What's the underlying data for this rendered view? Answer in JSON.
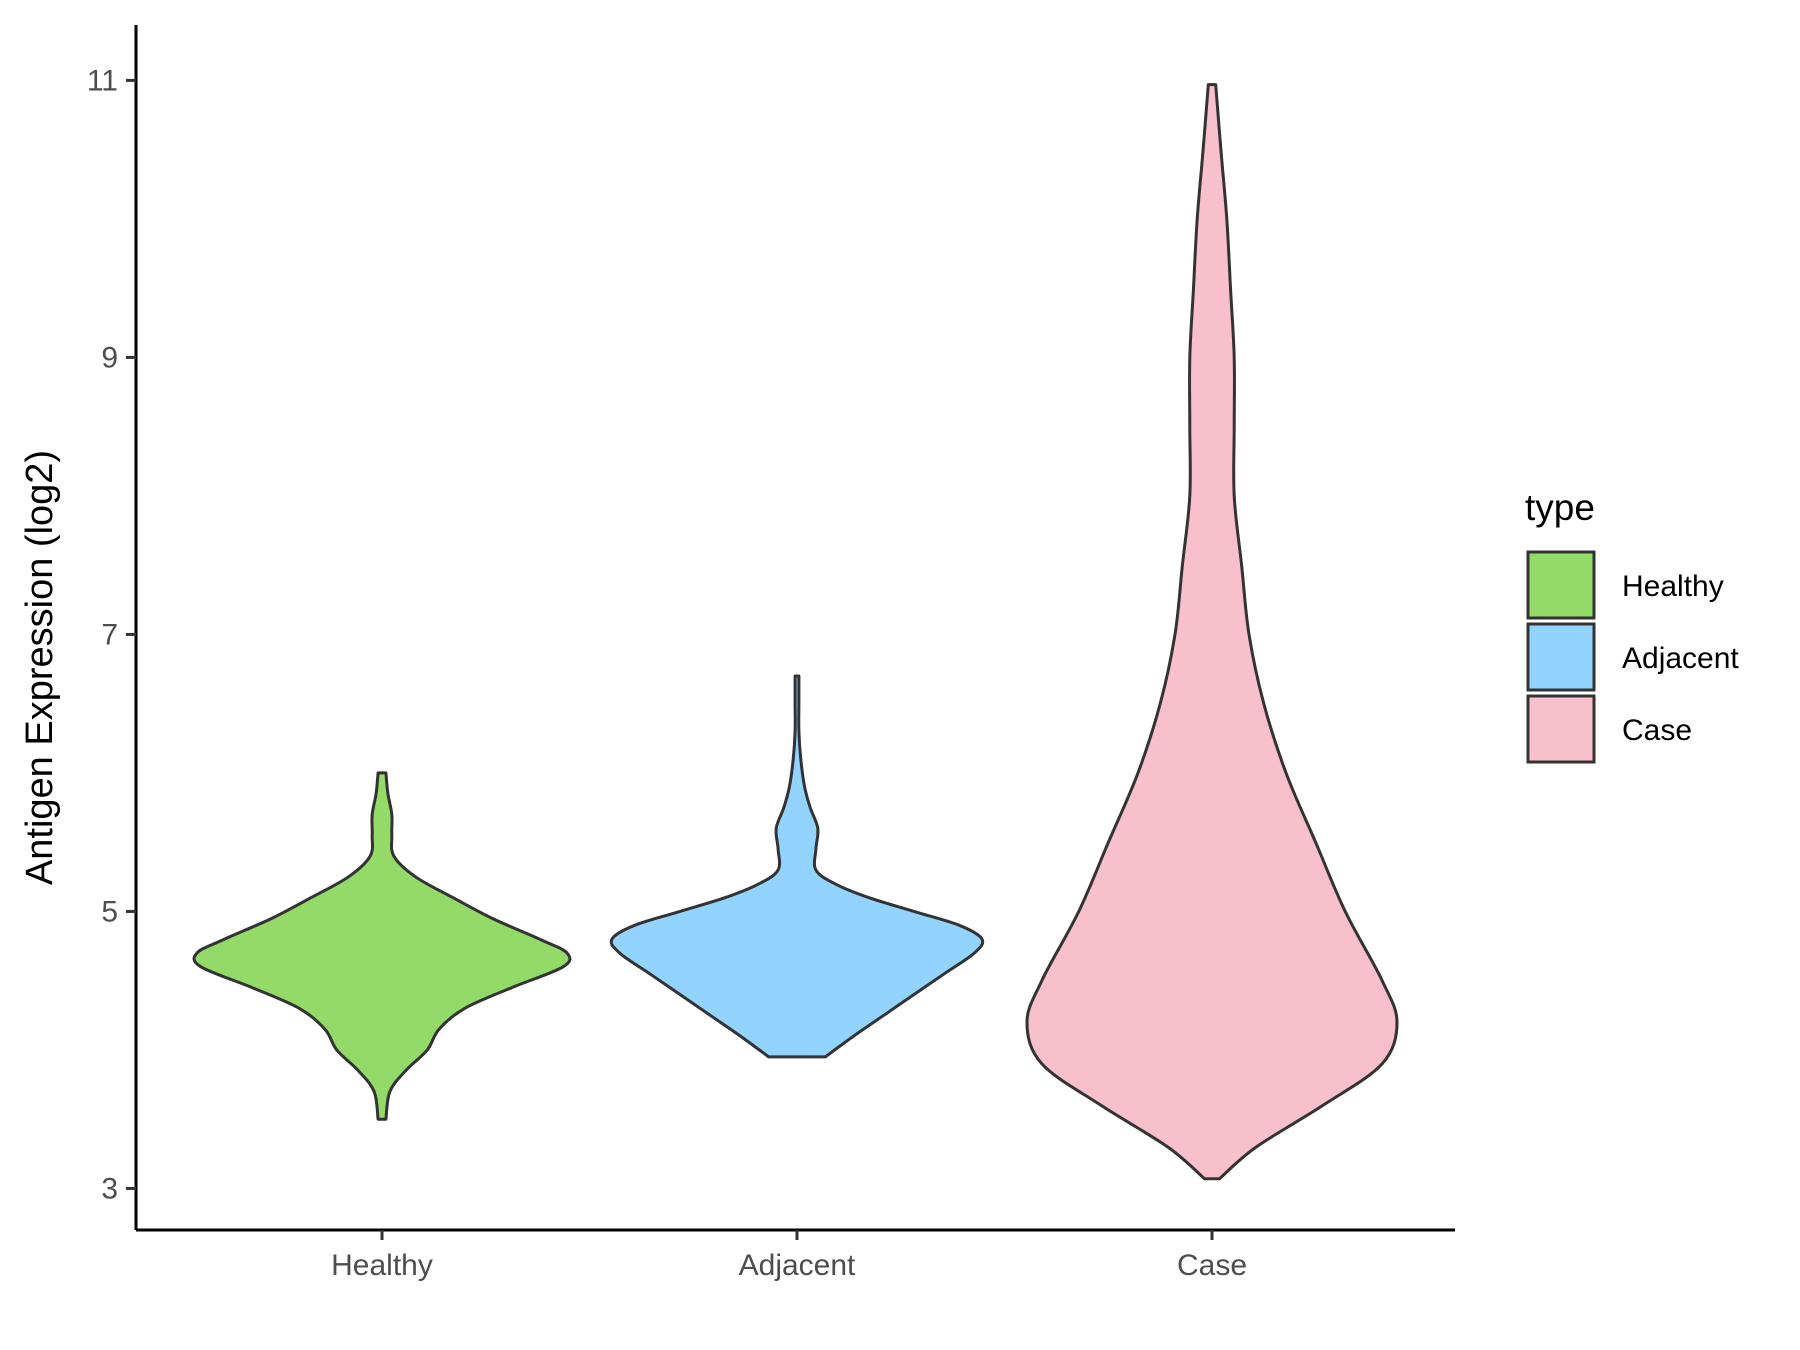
{
  "chart_data": {
    "type": "violin",
    "xlabel": "",
    "ylabel": "Antigen Expression (log2)",
    "ylim": [
      2.7,
      11.4
    ],
    "yticks": [
      3,
      5,
      7,
      9,
      11
    ],
    "categories": [
      "Healthy",
      "Adjacent",
      "Case"
    ],
    "legend": {
      "title": "type",
      "position": "right",
      "entries": [
        {
          "label": "Healthy",
          "color": "#93DA69"
        },
        {
          "label": "Adjacent",
          "color": "#93D3FF"
        },
        {
          "label": "Case",
          "color": "#F7C0CC"
        }
      ]
    },
    "grid": false,
    "violins": [
      {
        "category": "Healthy",
        "color": "#93DA69",
        "min": 3.5,
        "max": 6.0,
        "density": [
          [
            3.5,
            0.02
          ],
          [
            3.7,
            0.04
          ],
          [
            3.85,
            0.12
          ],
          [
            4.0,
            0.23
          ],
          [
            4.15,
            0.29
          ],
          [
            4.3,
            0.42
          ],
          [
            4.45,
            0.66
          ],
          [
            4.6,
            0.92
          ],
          [
            4.7,
            0.94
          ],
          [
            4.8,
            0.8
          ],
          [
            4.95,
            0.56
          ],
          [
            5.1,
            0.36
          ],
          [
            5.25,
            0.17
          ],
          [
            5.4,
            0.06
          ],
          [
            5.55,
            0.05
          ],
          [
            5.7,
            0.05
          ],
          [
            5.85,
            0.03
          ],
          [
            6.0,
            0.02
          ]
        ]
      },
      {
        "category": "Adjacent",
        "color": "#93D3FF",
        "min": 3.95,
        "max": 6.7,
        "density": [
          [
            3.95,
            0.15
          ],
          [
            4.1,
            0.3
          ],
          [
            4.25,
            0.46
          ],
          [
            4.4,
            0.62
          ],
          [
            4.55,
            0.78
          ],
          [
            4.7,
            0.94
          ],
          [
            4.8,
            0.98
          ],
          [
            4.9,
            0.86
          ],
          [
            5.0,
            0.62
          ],
          [
            5.1,
            0.38
          ],
          [
            5.2,
            0.2
          ],
          [
            5.3,
            0.1
          ],
          [
            5.45,
            0.1
          ],
          [
            5.6,
            0.11
          ],
          [
            5.75,
            0.07
          ],
          [
            5.9,
            0.04
          ],
          [
            6.1,
            0.02
          ],
          [
            6.3,
            0.01
          ],
          [
            6.5,
            0.01
          ],
          [
            6.7,
            0.01
          ]
        ]
      },
      {
        "category": "Case",
        "color": "#F7C0CC",
        "min": 3.07,
        "max": 10.97,
        "density": [
          [
            3.07,
            0.01
          ],
          [
            3.3,
            0.06
          ],
          [
            3.6,
            0.15
          ],
          [
            3.9,
            0.23
          ],
          [
            4.2,
            0.25
          ],
          [
            4.5,
            0.23
          ],
          [
            5.0,
            0.18
          ],
          [
            5.5,
            0.14
          ],
          [
            6.0,
            0.1
          ],
          [
            6.5,
            0.07
          ],
          [
            7.0,
            0.05
          ],
          [
            7.5,
            0.04
          ],
          [
            8.0,
            0.03
          ],
          [
            8.5,
            0.03
          ],
          [
            9.0,
            0.03
          ],
          [
            9.5,
            0.025
          ],
          [
            10.0,
            0.02
          ],
          [
            10.5,
            0.012
          ],
          [
            10.97,
            0.005
          ]
        ]
      }
    ]
  }
}
